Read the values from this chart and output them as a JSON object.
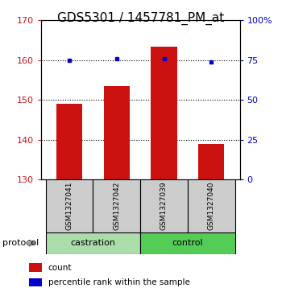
{
  "title": "GDS5301 / 1457781_PM_at",
  "samples": [
    "GSM1327041",
    "GSM1327042",
    "GSM1327039",
    "GSM1327040"
  ],
  "bar_values": [
    149.0,
    153.5,
    163.5,
    139.0
  ],
  "bar_bottom": 130,
  "dot_values_pct": [
    75,
    76,
    76,
    74
  ],
  "left_ylim": [
    130,
    170
  ],
  "right_ylim": [
    0,
    100
  ],
  "left_yticks": [
    130,
    140,
    150,
    160,
    170
  ],
  "right_yticks": [
    0,
    25,
    50,
    75,
    100
  ],
  "right_yticklabels": [
    "0",
    "25",
    "50",
    "75",
    "100%"
  ],
  "bar_color": "#cc1111",
  "dot_color": "#0000cc",
  "grid_color": "#000000",
  "groups": [
    {
      "label": "castration",
      "indices": [
        0,
        1
      ],
      "color": "#aaddaa"
    },
    {
      "label": "control",
      "indices": [
        2,
        3
      ],
      "color": "#55cc55"
    }
  ],
  "sample_box_color": "#cccccc",
  "legend_count_color": "#cc1111",
  "legend_dot_color": "#0000cc",
  "bar_width": 0.55,
  "protocol_label": "protocol",
  "title_fontsize": 11,
  "tick_fontsize": 8,
  "sample_fontsize": 6.5,
  "group_fontsize": 8,
  "legend_fontsize": 7.5
}
